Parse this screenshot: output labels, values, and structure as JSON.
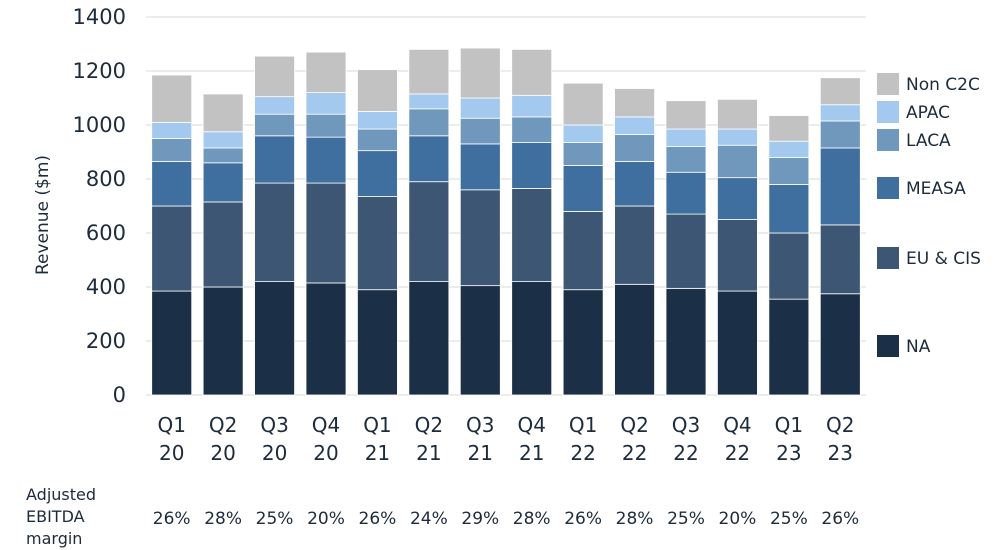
{
  "chart_data": {
    "type": "bar",
    "stacked": true,
    "ylabel": "Revenue ($m)",
    "ylim": [
      0,
      1400
    ],
    "yticks": [
      0,
      200,
      400,
      600,
      800,
      1000,
      1200,
      1400
    ],
    "grid": true,
    "legend_position": "right",
    "categories": [
      [
        "Q1",
        "20"
      ],
      [
        "Q2",
        "20"
      ],
      [
        "Q3",
        "20"
      ],
      [
        "Q4",
        "20"
      ],
      [
        "Q1",
        "21"
      ],
      [
        "Q2",
        "21"
      ],
      [
        "Q3",
        "21"
      ],
      [
        "Q4",
        "21"
      ],
      [
        "Q1",
        "22"
      ],
      [
        "Q2",
        "22"
      ],
      [
        "Q3",
        "22"
      ],
      [
        "Q4",
        "22"
      ],
      [
        "Q1",
        "23"
      ],
      [
        "Q2",
        "23"
      ]
    ],
    "series": [
      {
        "name": "NA",
        "color": "#1b2f47",
        "values": [
          385,
          400,
          420,
          415,
          390,
          420,
          405,
          420,
          390,
          410,
          395,
          385,
          355,
          375
        ]
      },
      {
        "name": "EU & CIS",
        "color": "#3c5673",
        "values": [
          315,
          315,
          365,
          370,
          345,
          370,
          355,
          345,
          290,
          290,
          275,
          265,
          245,
          255
        ]
      },
      {
        "name": "MEASA",
        "color": "#3f6f9e",
        "values": [
          165,
          145,
          175,
          170,
          170,
          170,
          170,
          170,
          170,
          165,
          155,
          155,
          180,
          285
        ]
      },
      {
        "name": "LACA",
        "color": "#7098bd",
        "values": [
          85,
          55,
          80,
          85,
          80,
          100,
          95,
          95,
          85,
          100,
          95,
          120,
          100,
          100
        ]
      },
      {
        "name": "APAC",
        "color": "#a3c9ee",
        "values": [
          60,
          60,
          65,
          80,
          65,
          55,
          75,
          80,
          65,
          65,
          65,
          60,
          60,
          60
        ]
      },
      {
        "name": "Non C2C",
        "color": "#c2c2c2",
        "values": [
          175,
          140,
          150,
          150,
          155,
          165,
          185,
          170,
          155,
          105,
          105,
          110,
          95,
          100
        ]
      }
    ]
  },
  "ebitda": {
    "label": "Adjusted\nEBITDA\nmargin",
    "values": [
      "26%",
      "28%",
      "25%",
      "20%",
      "26%",
      "24%",
      "29%",
      "28%",
      "26%",
      "28%",
      "25%",
      "20%",
      "25%",
      "26%"
    ]
  }
}
